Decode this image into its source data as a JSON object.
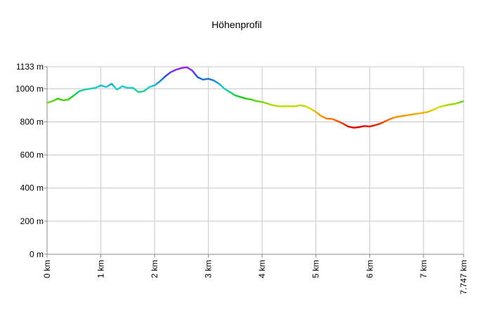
{
  "chart_data": {
    "type": "line",
    "title": "Höhenprofil",
    "x": [
      0,
      0.1,
      0.2,
      0.3,
      0.4,
      0.5,
      0.6,
      0.7,
      0.8,
      0.9,
      1.0,
      1.1,
      1.2,
      1.3,
      1.4,
      1.5,
      1.6,
      1.7,
      1.8,
      1.9,
      2.0,
      2.1,
      2.2,
      2.3,
      2.4,
      2.5,
      2.6,
      2.7,
      2.8,
      2.9,
      3.0,
      3.1,
      3.2,
      3.3,
      3.4,
      3.5,
      3.6,
      3.7,
      3.8,
      3.9,
      4.0,
      4.1,
      4.2,
      4.3,
      4.4,
      4.5,
      4.6,
      4.7,
      4.8,
      4.9,
      5.0,
      5.1,
      5.2,
      5.3,
      5.4,
      5.5,
      5.6,
      5.7,
      5.8,
      5.9,
      6.0,
      6.1,
      6.2,
      6.3,
      6.4,
      6.5,
      6.6,
      6.7,
      6.8,
      6.9,
      7.0,
      7.1,
      7.2,
      7.3,
      7.4,
      7.5,
      7.6,
      7.7,
      7.747
    ],
    "values": [
      915,
      925,
      940,
      930,
      935,
      960,
      985,
      995,
      1000,
      1005,
      1020,
      1010,
      1030,
      995,
      1015,
      1005,
      1005,
      980,
      985,
      1010,
      1020,
      1045,
      1075,
      1100,
      1115,
      1125,
      1130,
      1110,
      1070,
      1055,
      1060,
      1050,
      1030,
      1000,
      980,
      960,
      950,
      940,
      935,
      925,
      920,
      910,
      900,
      895,
      893,
      895,
      893,
      900,
      895,
      880,
      860,
      835,
      820,
      818,
      805,
      790,
      772,
      765,
      768,
      775,
      772,
      780,
      790,
      805,
      820,
      830,
      835,
      840,
      845,
      850,
      855,
      862,
      875,
      890,
      898,
      905,
      910,
      920,
      925
    ],
    "color_scale": [
      "#e00000",
      "#ff8c00",
      "#d8e000",
      "#22cc22",
      "#20d0d0",
      "#1a5fd6",
      "#a020f0"
    ],
    "xlim": [
      0,
      7.747
    ],
    "xticks": [
      {
        "value": 0,
        "label": "0 km"
      },
      {
        "value": 1,
        "label": "1 km"
      },
      {
        "value": 2,
        "label": "2 km"
      },
      {
        "value": 3,
        "label": "3 km"
      },
      {
        "value": 4,
        "label": "4 km"
      },
      {
        "value": 5,
        "label": "5 km"
      },
      {
        "value": 6,
        "label": "6 km"
      },
      {
        "value": 7,
        "label": "7 km"
      },
      {
        "value": 7.747,
        "label": "7.747 km"
      }
    ],
    "ylim": [
      0,
      1133
    ],
    "yticks": [
      {
        "value": 0,
        "label": "0 m"
      },
      {
        "value": 200,
        "label": "200 m"
      },
      {
        "value": 400,
        "label": "400 m"
      },
      {
        "value": 600,
        "label": "600 m"
      },
      {
        "value": 800,
        "label": "800 m"
      },
      {
        "value": 1000,
        "label": "1000 m"
      },
      {
        "value": 1133,
        "label": "1133 m"
      }
    ],
    "grid": true
  }
}
